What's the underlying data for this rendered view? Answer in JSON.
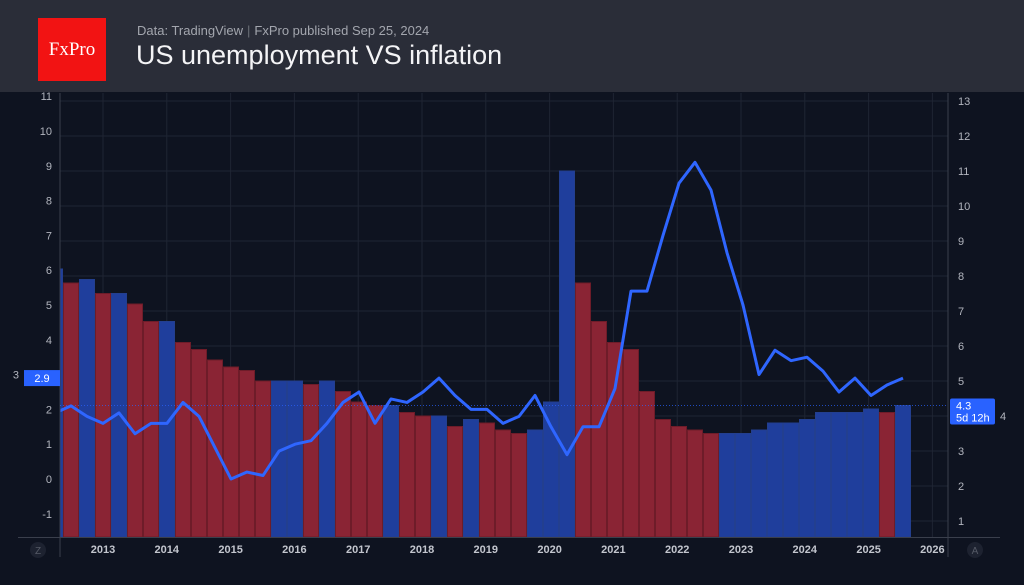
{
  "header": {
    "logo": "FxPro",
    "source": "Data: TradingView",
    "separator": "|",
    "published": "FxPro published Sep 25, 2024",
    "title": "US unemployment VS inflation"
  },
  "chart_data": {
    "type": "bar+line",
    "title": "US unemployment VS inflation",
    "colors": {
      "increase_bar": "#1f3e9c",
      "decrease_bar": "#8a2434",
      "line": "#2f66ff",
      "label_bg": "#2962ff"
    },
    "x_ticks": [
      "2013",
      "2014",
      "2015",
      "2016",
      "2017",
      "2018",
      "2019",
      "2020",
      "2021",
      "2022",
      "2023",
      "2024",
      "2025",
      "2026"
    ],
    "left_axis": {
      "ticks": [
        11,
        10,
        9,
        8,
        7,
        6,
        5,
        4,
        3,
        2,
        1,
        0,
        -1
      ],
      "range": [
        -1.8,
        11.1
      ]
    },
    "right_axis": {
      "ticks": [
        13,
        12,
        11,
        10,
        9,
        8,
        7,
        6,
        5,
        4,
        3,
        2,
        1
      ],
      "range": [
        0.5,
        13.2
      ]
    },
    "grid": true,
    "series": [
      {
        "type": "bar",
        "axis": "right",
        "values": [
          8.2,
          7.8,
          7.9,
          7.5,
          7.5,
          7.2,
          6.7,
          6.7,
          6.1,
          5.9,
          5.6,
          5.4,
          5.3,
          5.0,
          5.0,
          5.0,
          4.9,
          5.0,
          4.7,
          4.4,
          4.3,
          4.3,
          4.1,
          4.0,
          4.0,
          3.7,
          3.9,
          3.8,
          3.6,
          3.5,
          3.6,
          4.4,
          11.0,
          7.8,
          6.7,
          6.1,
          5.9,
          4.7,
          3.9,
          3.7,
          3.6,
          3.5,
          3.5,
          3.5,
          3.6,
          3.8,
          3.8,
          3.9,
          4.1,
          4.1,
          4.1,
          4.2,
          4.1,
          4.3
        ],
        "direction": [
          "up",
          "down",
          "up",
          "down",
          "up",
          "down",
          "down",
          "up",
          "down",
          "down",
          "down",
          "down",
          "down",
          "down",
          "up",
          "up",
          "down",
          "up",
          "down",
          "down",
          "down",
          "up",
          "down",
          "down",
          "up",
          "down",
          "up",
          "down",
          "down",
          "down",
          "up",
          "up",
          "up",
          "down",
          "down",
          "down",
          "down",
          "down",
          "down",
          "down",
          "down",
          "down",
          "up",
          "up",
          "up",
          "up",
          "up",
          "up",
          "up",
          "up",
          "up",
          "up",
          "down",
          "up"
        ]
      },
      {
        "type": "line",
        "axis": "left",
        "values": [
          1.9,
          2.1,
          1.8,
          1.6,
          1.9,
          1.3,
          1.6,
          1.6,
          2.2,
          1.8,
          0.9,
          0.0,
          0.2,
          0.1,
          0.8,
          1.0,
          1.1,
          1.6,
          2.2,
          2.5,
          1.6,
          2.3,
          2.2,
          2.5,
          2.9,
          2.4,
          2.0,
          2.0,
          1.6,
          1.8,
          2.4,
          1.5,
          0.7,
          1.5,
          1.5,
          2.6,
          5.4,
          5.4,
          7.0,
          8.5,
          9.1,
          8.3,
          6.5,
          5.0,
          3.0,
          3.7,
          3.4,
          3.5,
          3.1,
          2.5,
          2.9,
          2.4,
          2.7,
          2.9
        ]
      }
    ],
    "last_labels": {
      "left": "2.9",
      "right_value": "4.3",
      "right_countdown": "5d 12h"
    },
    "axis_buttons": {
      "left": "Z",
      "right": "A"
    }
  }
}
